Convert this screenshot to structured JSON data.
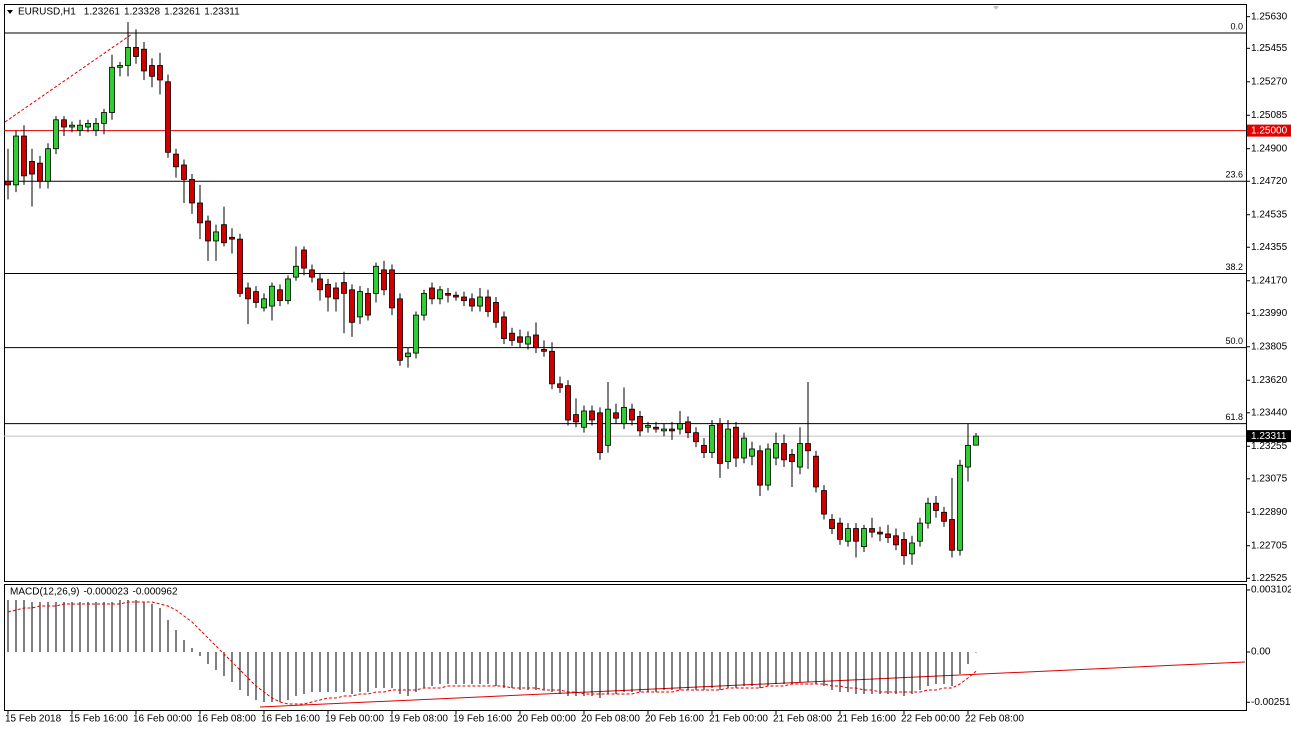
{
  "chart_data": [
    {
      "type": "candlestick",
      "symbol": "EURUSD,H1",
      "header_values": [
        1.23261,
        1.23328,
        1.23261,
        1.23311
      ],
      "categories": [
        "15 Feb 2018",
        null,
        null,
        null,
        null,
        null,
        null,
        null,
        "15 Feb 16:00",
        null,
        null,
        null,
        null,
        null,
        null,
        null,
        "16 Feb 00:00",
        null,
        null,
        null,
        null,
        null,
        null,
        null,
        "16 Feb 08:00",
        null,
        null,
        null,
        null,
        null,
        null,
        null,
        "16 Feb 16:00",
        null,
        null,
        null,
        null,
        null,
        null,
        null,
        "19 Feb 00:00",
        null,
        null,
        null,
        null,
        null,
        null,
        null,
        "19 Feb 08:00",
        null,
        null,
        null,
        null,
        null,
        null,
        null,
        "19 Feb 16:00",
        null,
        null,
        null,
        null,
        null,
        null,
        null,
        "20 Feb 00:00",
        null,
        null,
        null,
        null,
        null,
        null,
        null,
        "20 Feb 08:00",
        null,
        null,
        null,
        null,
        null,
        null,
        null,
        "20 Feb 16:00",
        null,
        null,
        null,
        null,
        null,
        null,
        null,
        "21 Feb 00:00",
        null,
        null,
        null,
        null,
        null,
        null,
        null,
        "21 Feb 08:00",
        null,
        null,
        null,
        null,
        null,
        null,
        null,
        "21 Feb 16:00",
        null,
        null,
        null,
        null,
        null,
        null,
        null,
        "22 Feb 00:00",
        null,
        null,
        null,
        null,
        null,
        null,
        null,
        "22 Feb 08:00",
        null
      ],
      "ohlc": [
        [
          1.2472,
          1.249,
          1.2462,
          1.247
        ],
        [
          1.247,
          1.25,
          1.2466,
          1.2497
        ],
        [
          1.2497,
          1.2503,
          1.247,
          1.2475
        ],
        [
          1.2483,
          1.249,
          1.2458,
          1.2476
        ],
        [
          1.2482,
          1.2486,
          1.2468,
          1.2472
        ],
        [
          1.2472,
          1.2493,
          1.2468,
          1.249
        ],
        [
          1.249,
          1.2508,
          1.2487,
          1.2506
        ],
        [
          1.2506,
          1.2508,
          1.2497,
          1.2502
        ],
        [
          1.2502,
          1.2505,
          1.2499,
          1.2503
        ],
        [
          1.25,
          1.2506,
          1.2497,
          1.2503
        ],
        [
          1.2502,
          1.2506,
          1.2499,
          1.2504
        ],
        [
          1.25,
          1.2507,
          1.2497,
          1.2504
        ],
        [
          1.2504,
          1.2512,
          1.2498,
          1.251
        ],
        [
          1.251,
          1.2542,
          1.2506,
          1.2535
        ],
        [
          1.2535,
          1.2538,
          1.253,
          1.2536
        ],
        [
          1.2536,
          1.256,
          1.253,
          1.2546
        ],
        [
          1.2546,
          1.2556,
          1.2537,
          1.2541
        ],
        [
          1.2545,
          1.2549,
          1.2528,
          1.2533
        ],
        [
          1.2536,
          1.254,
          1.2524,
          1.253
        ],
        [
          1.2536,
          1.2543,
          1.252,
          1.2528
        ],
        [
          1.2527,
          1.2531,
          1.2485,
          1.2488
        ],
        [
          1.2487,
          1.249,
          1.2474,
          1.248
        ],
        [
          1.2481,
          1.2484,
          1.246,
          1.2473
        ],
        [
          1.2473,
          1.2476,
          1.2454,
          1.246
        ],
        [
          1.246,
          1.247,
          1.244,
          1.2449
        ],
        [
          1.245,
          1.2453,
          1.2428,
          1.2439
        ],
        [
          1.2439,
          1.2448,
          1.2428,
          1.2444
        ],
        [
          1.2448,
          1.2458,
          1.2436,
          1.2438
        ],
        [
          1.2441,
          1.2446,
          1.2432,
          1.244
        ],
        [
          1.244,
          1.2443,
          1.2408,
          1.241
        ],
        [
          1.2413,
          1.2416,
          1.2393,
          1.2407
        ],
        [
          1.2411,
          1.2414,
          1.2402,
          1.2405
        ],
        [
          1.2402,
          1.241,
          1.24,
          1.2407
        ],
        [
          1.2403,
          1.2416,
          1.2395,
          1.2414
        ],
        [
          1.2412,
          1.2415,
          1.2403,
          1.2406
        ],
        [
          1.2406,
          1.242,
          1.2404,
          1.2418
        ],
        [
          1.2419,
          1.2436,
          1.2417,
          1.2425
        ],
        [
          1.2434,
          1.2436,
          1.242,
          1.2424
        ],
        [
          1.2423,
          1.2426,
          1.2416,
          1.2419
        ],
        [
          1.2418,
          1.2421,
          1.2406,
          1.2412
        ],
        [
          1.2415,
          1.2418,
          1.24,
          1.2408
        ],
        [
          1.2413,
          1.2416,
          1.24,
          1.2407
        ],
        [
          1.2416,
          1.2422,
          1.2388,
          1.241
        ],
        [
          1.2412,
          1.2415,
          1.2386,
          1.2394
        ],
        [
          1.2397,
          1.2414,
          1.2393,
          1.2411
        ],
        [
          1.241,
          1.2413,
          1.2395,
          1.2398
        ],
        [
          1.241,
          1.2427,
          1.2405,
          1.2425
        ],
        [
          1.2423,
          1.2428,
          1.2409,
          1.2412
        ],
        [
          1.2423,
          1.2426,
          1.2398,
          1.2402
        ],
        [
          1.2407,
          1.241,
          1.237,
          1.2373
        ],
        [
          1.2375,
          1.238,
          1.2369,
          1.2377
        ],
        [
          1.2377,
          1.24,
          1.2374,
          1.2398
        ],
        [
          1.2398,
          1.2412,
          1.2395,
          1.241
        ],
        [
          1.2413,
          1.2416,
          1.2404,
          1.2407
        ],
        [
          1.2407,
          1.2414,
          1.2404,
          1.2412
        ],
        [
          1.241,
          1.2413,
          1.2405,
          1.2409
        ],
        [
          1.2409,
          1.2411,
          1.2406,
          1.2408
        ],
        [
          1.2408,
          1.2411,
          1.2403,
          1.2406
        ],
        [
          1.2407,
          1.241,
          1.24,
          1.2403
        ],
        [
          1.2403,
          1.2413,
          1.24,
          1.2408
        ],
        [
          1.2408,
          1.2412,
          1.2397,
          1.24
        ],
        [
          1.2405,
          1.2408,
          1.2391,
          1.2394
        ],
        [
          1.2397,
          1.24,
          1.2382,
          1.2385
        ],
        [
          1.2388,
          1.2391,
          1.2381,
          1.2384
        ],
        [
          1.2386,
          1.239,
          1.238,
          1.2383
        ],
        [
          1.2382,
          1.2389,
          1.2379,
          1.2386
        ],
        [
          1.2387,
          1.2394,
          1.2377,
          1.238
        ],
        [
          1.2379,
          1.2384,
          1.2375,
          1.2378
        ],
        [
          1.2378,
          1.2383,
          1.2357,
          1.236
        ],
        [
          1.236,
          1.2364,
          1.2355,
          1.2358
        ],
        [
          1.2359,
          1.2362,
          1.2337,
          1.234
        ],
        [
          1.2343,
          1.2352,
          1.2336,
          1.2339
        ],
        [
          1.2336,
          1.2348,
          1.2333,
          1.2345
        ],
        [
          1.2345,
          1.2348,
          1.2337,
          1.234
        ],
        [
          1.2344,
          1.2347,
          1.2318,
          1.2322
        ],
        [
          1.2326,
          1.2361,
          1.2322,
          1.2346
        ],
        [
          1.2344,
          1.2349,
          1.2338,
          1.2341
        ],
        [
          1.2338,
          1.2358,
          1.2335,
          1.2347
        ],
        [
          1.2346,
          1.2349,
          1.2337,
          1.234
        ],
        [
          1.2342,
          1.2345,
          1.2331,
          1.2334
        ],
        [
          1.2336,
          1.2339,
          1.2333,
          1.2337
        ],
        [
          1.2336,
          1.2339,
          1.2333,
          1.2335
        ],
        [
          1.2334,
          1.2338,
          1.2331,
          1.2335
        ],
        [
          1.2335,
          1.2339,
          1.2329,
          1.2334
        ],
        [
          1.2335,
          1.2345,
          1.2332,
          1.2338
        ],
        [
          1.2339,
          1.2342,
          1.233,
          1.2333
        ],
        [
          1.2333,
          1.2336,
          1.2325,
          1.2328
        ],
        [
          1.2326,
          1.233,
          1.2319,
          1.2322
        ],
        [
          1.2322,
          1.234,
          1.2319,
          1.2337
        ],
        [
          1.2338,
          1.2341,
          1.2308,
          1.2316
        ],
        [
          1.2317,
          1.234,
          1.2313,
          1.2335
        ],
        [
          1.2336,
          1.2339,
          1.2314,
          1.2319
        ],
        [
          1.2319,
          1.2333,
          1.2316,
          1.233
        ],
        [
          1.232,
          1.2328,
          1.2315,
          1.2324
        ],
        [
          1.2323,
          1.2326,
          1.2298,
          1.2304
        ],
        [
          1.2304,
          1.2327,
          1.2301,
          1.2324
        ],
        [
          1.2319,
          1.2333,
          1.2315,
          1.2327
        ],
        [
          1.2327,
          1.2332,
          1.2314,
          1.2318
        ],
        [
          1.2321,
          1.2324,
          1.2303,
          1.2317
        ],
        [
          1.2314,
          1.2336,
          1.231,
          1.2327
        ],
        [
          1.2327,
          1.2361,
          1.2313,
          1.2323
        ],
        [
          1.232,
          1.2323,
          1.23,
          1.2303
        ],
        [
          1.2301,
          1.2304,
          1.2285,
          1.2288
        ],
        [
          1.2285,
          1.2288,
          1.2277,
          1.228
        ],
        [
          1.2283,
          1.2286,
          1.2271,
          1.2274
        ],
        [
          1.2273,
          1.2283,
          1.227,
          1.228
        ],
        [
          1.228,
          1.2283,
          1.2264,
          1.2273
        ],
        [
          1.227,
          1.2282,
          1.2267,
          1.228
        ],
        [
          1.228,
          1.2286,
          1.2275,
          1.2278
        ],
        [
          1.2278,
          1.2281,
          1.2273,
          1.2277
        ],
        [
          1.2277,
          1.2282,
          1.2272,
          1.2275
        ],
        [
          1.2276,
          1.228,
          1.2268,
          1.2271
        ],
        [
          1.2274,
          1.2278,
          1.226,
          1.2265
        ],
        [
          1.2266,
          1.2276,
          1.226,
          1.2272
        ],
        [
          1.2273,
          1.2286,
          1.227,
          1.2283
        ],
        [
          1.2283,
          1.2297,
          1.228,
          1.2294
        ],
        [
          1.2294,
          1.2298,
          1.2286,
          1.229
        ],
        [
          1.2289,
          1.2292,
          1.2281,
          1.2284
        ],
        [
          1.2285,
          1.2308,
          1.2264,
          1.2268
        ],
        [
          1.2268,
          1.2318,
          1.2265,
          1.2315
        ],
        [
          1.2314,
          1.2338,
          1.2306,
          1.2326
        ],
        [
          1.23261,
          1.23328,
          1.23261,
          1.23311
        ]
      ],
      "up_color": "#32cd32",
      "down_color": "#d00000",
      "ylim": [
        1.2251,
        1.257
      ],
      "yticks": [
        {
          "value": 1.2563,
          "label": "1.25630"
        },
        1.25455,
        {
          "value": 1.2527,
          "label": "1.25270"
        },
        1.25085,
        {
          "value": 1.249,
          "label": "1.24900"
        },
        {
          "value": 1.2472,
          "label": "1.24720"
        },
        1.24535,
        1.24355,
        {
          "value": 1.2417,
          "label": "1.24170"
        },
        {
          "value": 1.2399,
          "label": "1.23990"
        },
        1.23805,
        {
          "value": 1.2362,
          "label": "1.23620"
        },
        {
          "value": 1.2344,
          "label": "1.23440"
        },
        1.23255,
        1.23075,
        {
          "value": 1.2289,
          "label": "1.22890"
        },
        1.22705,
        1.22525
      ],
      "hline": {
        "value": 1.25,
        "label": "1.25000",
        "color": "#e00000"
      },
      "price_line": 1.23311,
      "fib_levels": [
        {
          "label": "0.0",
          "price": 1.2554
        },
        {
          "label": "23.6",
          "price": 1.2472
        },
        {
          "label": "38.2",
          "price": 1.2421
        },
        {
          "label": "50.0",
          "price": 1.238
        },
        {
          "label": "61.8",
          "price": 1.2338
        }
      ]
    },
    {
      "type": "macd",
      "title": "MACD(12,26,9)",
      "title_values": [
        -2.3e-05,
        -0.000962
      ],
      "histogram": [
        0.0026,
        0.0026,
        0.0026,
        0.0025,
        0.0025,
        0.0025,
        0.0025,
        0.0025,
        0.0025,
        0.0025,
        0.0025,
        0.0025,
        0.0025,
        0.0025,
        0.0026,
        0.0026,
        0.0026,
        0.0025,
        0.0024,
        0.0022,
        0.0016,
        0.0011,
        0.0006,
        0.0002,
        -0.0002,
        -0.0006,
        -0.0009,
        -0.0012,
        -0.0015,
        -0.0019,
        -0.0022,
        -0.0024,
        -0.0025,
        -0.0025,
        -0.0025,
        -0.0024,
        -0.0022,
        -0.0021,
        -0.002,
        -0.002,
        -0.002,
        -0.002,
        -0.002,
        -0.0021,
        -0.002,
        -0.002,
        -0.0018,
        -0.0018,
        -0.0018,
        -0.0021,
        -0.0022,
        -0.002,
        -0.0018,
        -0.0017,
        -0.0016,
        -0.0016,
        -0.0016,
        -0.0016,
        -0.0016,
        -0.0016,
        -0.0016,
        -0.0017,
        -0.0018,
        -0.0018,
        -0.0019,
        -0.0019,
        -0.0019,
        -0.0019,
        -0.002,
        -0.0021,
        -0.0022,
        -0.0022,
        -0.0022,
        -0.0022,
        -0.0023,
        -0.0021,
        -0.0021,
        -0.002,
        -0.002,
        -0.002,
        -0.002,
        -0.002,
        -0.0019,
        -0.0019,
        -0.0019,
        -0.0019,
        -0.0019,
        -0.0019,
        -0.0018,
        -0.0019,
        -0.0018,
        -0.0018,
        -0.0017,
        -0.0017,
        -0.0018,
        -0.0017,
        -0.0016,
        -0.0016,
        -0.0016,
        -0.0015,
        -0.0015,
        -0.0016,
        -0.0017,
        -0.0019,
        -0.002,
        -0.002,
        -0.0021,
        -0.0021,
        -0.0021,
        -0.0021,
        -0.0021,
        -0.0021,
        -0.0022,
        -0.0021,
        -0.0019,
        -0.0017,
        -0.0016,
        -0.0016,
        -0.0017,
        -0.0011,
        -0.0006,
        -2.3e-05
      ],
      "signal": [
        0.002,
        0.0021,
        0.0022,
        0.0022,
        0.0023,
        0.0023,
        0.0023,
        0.0024,
        0.0024,
        0.0024,
        0.0024,
        0.0024,
        0.0024,
        0.0024,
        0.0024,
        0.0025,
        0.0025,
        0.0025,
        0.0025,
        0.0024,
        0.0023,
        0.0021,
        0.0018,
        0.0015,
        0.0011,
        0.0007,
        0.0003,
        -0.0001,
        -0.0005,
        -0.0009,
        -0.0013,
        -0.0017,
        -0.002,
        -0.0023,
        -0.0025,
        -0.0026,
        -0.0026,
        -0.0026,
        -0.0025,
        -0.0024,
        -0.0023,
        -0.0023,
        -0.0022,
        -0.0022,
        -0.0021,
        -0.0021,
        -0.002,
        -0.002,
        -0.0019,
        -0.0019,
        -0.0019,
        -0.0019,
        -0.0018,
        -0.0018,
        -0.0018,
        -0.0017,
        -0.0017,
        -0.0017,
        -0.0017,
        -0.0017,
        -0.0017,
        -0.0017,
        -0.0017,
        -0.0018,
        -0.0018,
        -0.0018,
        -0.0018,
        -0.0019,
        -0.0019,
        -0.0019,
        -0.002,
        -0.002,
        -0.0021,
        -0.0021,
        -0.0021,
        -0.0021,
        -0.0021,
        -0.0021,
        -0.0021,
        -0.002,
        -0.002,
        -0.002,
        -0.002,
        -0.002,
        -0.0019,
        -0.0019,
        -0.0019,
        -0.0019,
        -0.0019,
        -0.0019,
        -0.0018,
        -0.0018,
        -0.0018,
        -0.0018,
        -0.0018,
        -0.0017,
        -0.0017,
        -0.0017,
        -0.0016,
        -0.0016,
        -0.0016,
        -0.0016,
        -0.0016,
        -0.0017,
        -0.0017,
        -0.0018,
        -0.0018,
        -0.0019,
        -0.0019,
        -0.002,
        -0.002,
        -0.002,
        -0.002,
        -0.002,
        -0.002,
        -0.0019,
        -0.0019,
        -0.0018,
        -0.0018,
        -0.0016,
        -0.0013,
        -0.000962
      ],
      "signal_color": "#e00000",
      "ylim": [
        -0.0029,
        0.0034
      ],
      "yticks": [
        0.003102,
        {
          "value": 0,
          "label": "0.00"
        },
        -0.002513
      ]
    }
  ]
}
